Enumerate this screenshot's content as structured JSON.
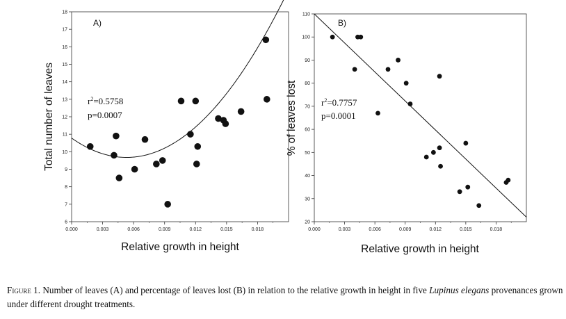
{
  "chart_data": [
    {
      "type": "scatter",
      "panel_label": "A)",
      "xlabel": "Relative growth in height",
      "ylabel": "Total number of leaves",
      "xlim": [
        0,
        0.021
      ],
      "ylim": [
        6,
        18
      ],
      "x_ticks": [
        0,
        0.003,
        0.006,
        0.009,
        0.012,
        0.015,
        0.018
      ],
      "x_tick_labels": [
        "0.000",
        "0.003",
        "0.006",
        "0.009",
        "0.012",
        "0.015",
        "0.018"
      ],
      "y_ticks": [
        6,
        7,
        8,
        9,
        10,
        11,
        12,
        13,
        14,
        15,
        16,
        17,
        18
      ],
      "y_tick_labels": [
        "6",
        "7",
        "8",
        "9",
        "10",
        "11",
        "12",
        "13",
        "14",
        "15",
        "16",
        "17",
        "18"
      ],
      "fit": {
        "type": "quadratic",
        "label": "r2=0.5758",
        "r2_value": "=0.5758",
        "p_label": "p=0.0007",
        "coefficients": [
          10.78,
          -415,
          39000
        ],
        "x_range": [
          0,
          0.0208
        ]
      },
      "series": [
        {
          "name": "observations",
          "points": [
            [
              0.0018,
              10.3
            ],
            [
              0.0041,
              9.8
            ],
            [
              0.0043,
              10.9
            ],
            [
              0.0046,
              8.5
            ],
            [
              0.0061,
              9.0
            ],
            [
              0.0071,
              10.7
            ],
            [
              0.0082,
              9.3
            ],
            [
              0.0088,
              9.5
            ],
            [
              0.0093,
              7.0
            ],
            [
              0.0106,
              12.9
            ],
            [
              0.0115,
              11.0
            ],
            [
              0.012,
              12.9
            ],
            [
              0.0121,
              9.3
            ],
            [
              0.0122,
              10.3
            ],
            [
              0.0142,
              11.9
            ],
            [
              0.0147,
              11.8
            ],
            [
              0.0149,
              11.6
            ],
            [
              0.0164,
              12.3
            ],
            [
              0.0188,
              16.4
            ],
            [
              0.0189,
              13.0
            ]
          ]
        }
      ]
    },
    {
      "type": "scatter",
      "panel_label": "B)",
      "xlabel": "Relative growth in height",
      "ylabel": "% of leaves lost",
      "xlim": [
        0,
        0.021
      ],
      "ylim": [
        20,
        110
      ],
      "x_ticks": [
        0,
        0.003,
        0.006,
        0.009,
        0.012,
        0.015,
        0.018
      ],
      "x_tick_labels": [
        "0.000",
        "0.003",
        "0.006",
        "0.009",
        "0.012",
        "0.015",
        "0.018"
      ],
      "y_ticks": [
        20,
        30,
        40,
        50,
        60,
        70,
        80,
        90,
        100,
        110
      ],
      "y_tick_labels": [
        "20",
        "30",
        "40",
        "50",
        "60",
        "70",
        "80",
        "90",
        "100",
        "110"
      ],
      "fit": {
        "type": "linear",
        "label": "r2=0.7757",
        "r2_value": "=0.7757",
        "p_label": "p=0.0001",
        "line": [
          [
            0,
            110
          ],
          [
            0.021,
            22
          ]
        ]
      },
      "series": [
        {
          "name": "observations",
          "points": [
            [
              0.0018,
              100
            ],
            [
              0.004,
              86
            ],
            [
              0.0043,
              100
            ],
            [
              0.0046,
              100
            ],
            [
              0.0063,
              67
            ],
            [
              0.0073,
              86
            ],
            [
              0.0083,
              90
            ],
            [
              0.0091,
              80
            ],
            [
              0.0095,
              71
            ],
            [
              0.0111,
              48
            ],
            [
              0.0118,
              50
            ],
            [
              0.0124,
              83
            ],
            [
              0.0124,
              52
            ],
            [
              0.0125,
              44
            ],
            [
              0.0144,
              33
            ],
            [
              0.015,
              54
            ],
            [
              0.0152,
              35
            ],
            [
              0.0163,
              27
            ],
            [
              0.019,
              37
            ],
            [
              0.0192,
              38
            ]
          ]
        }
      ]
    }
  ],
  "caption": {
    "figure_label": "Figure 1.",
    "text_before": "Number of leaves (A) and percentage of leaves lost (B) in relation to the relative growth in height in five",
    "species": "Lupinus elegans",
    "text_after": "provenances grown under different drought treatments."
  },
  "colors": {
    "marker": "#111111",
    "line": "#111111",
    "axis": "#333333"
  }
}
